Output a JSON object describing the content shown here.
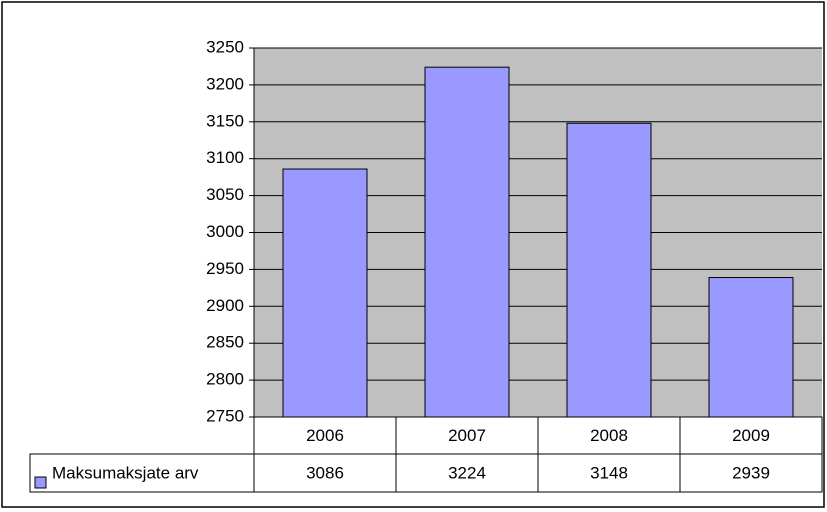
{
  "chart_data": {
    "type": "bar",
    "categories": [
      "2006",
      "2007",
      "2008",
      "2009"
    ],
    "series": [
      {
        "name": "Maksumaksjate arv",
        "color": "#9999ff",
        "values": [
          3086,
          3224,
          3148,
          2939
        ]
      }
    ],
    "ylim": [
      2750,
      3250
    ],
    "yticks": [
      2750,
      2800,
      2850,
      2900,
      2950,
      3000,
      3050,
      3100,
      3150,
      3200,
      3250
    ],
    "grid": true,
    "plot_background": "#c0c0c0",
    "data_table": true
  }
}
